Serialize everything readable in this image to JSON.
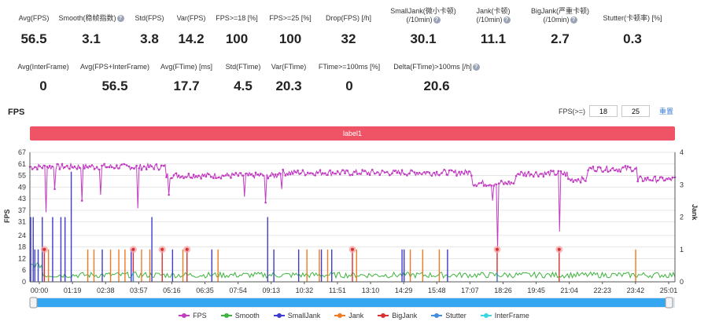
{
  "metrics_row1": [
    {
      "label": "Avg(FPS)",
      "value": "56.5",
      "help": false
    },
    {
      "label": "Smooth(稳帧指数)",
      "value": "3.1",
      "help": true
    },
    {
      "label": "Std(FPS)",
      "value": "3.8",
      "help": false
    },
    {
      "label": "Var(FPS)",
      "value": "14.2",
      "help": false
    },
    {
      "label": "FPS>=18 [%]",
      "value": "100",
      "help": false
    },
    {
      "label": "FPS>=25 [%]",
      "value": "100",
      "help": false
    },
    {
      "label": "Drop(FPS) [/h]",
      "value": "32",
      "help": false
    },
    {
      "label": "SmallJank(微小卡顿)",
      "label2": "(/10min)",
      "value": "30.1",
      "help": true
    },
    {
      "label": "Jank(卡顿)",
      "label2": "(/10min)",
      "value": "11.1",
      "help": true
    },
    {
      "label": "BigJank(严重卡顿)",
      "label2": "(/10min)",
      "value": "2.7",
      "help": true
    },
    {
      "label": "Stutter(卡顿率) [%]",
      "value": "0.3",
      "help": false
    }
  ],
  "metrics_row2": [
    {
      "label": "Avg(InterFrame)",
      "value": "0",
      "help": false
    },
    {
      "label": "Avg(FPS+InterFrame)",
      "value": "56.5",
      "help": false
    },
    {
      "label": "Avg(FTime) [ms]",
      "value": "17.7",
      "help": false
    },
    {
      "label": "Std(FTime)",
      "value": "4.5",
      "help": false
    },
    {
      "label": "Var(FTime)",
      "value": "20.3",
      "help": false
    },
    {
      "label": "FTime>=100ms [%]",
      "value": "0",
      "help": false
    },
    {
      "label": "Delta(FTime)>100ms [/h]",
      "value": "20.6",
      "help": true
    }
  ],
  "chart_section": {
    "title": "FPS",
    "threshold_label": "FPS(>=)",
    "threshold_1": "18",
    "threshold_2": "25",
    "reset_label": "重置",
    "label_bar": "label1"
  },
  "chart_data": {
    "type": "line",
    "y_left_ticks": [
      "0",
      "6",
      "12",
      "18",
      "24",
      "31",
      "37",
      "43",
      "49",
      "55",
      "61",
      "67"
    ],
    "y_left_label": "FPS",
    "y_left_range": [
      0,
      67
    ],
    "y_right_ticks": [
      "0",
      "1",
      "2",
      "3",
      "4"
    ],
    "y_right_label": "Jank",
    "y_right_range": [
      0,
      4
    ],
    "x_ticks": [
      "00:00",
      "01:19",
      "02:38",
      "03:57",
      "05:16",
      "06:35",
      "07:54",
      "09:13",
      "10:32",
      "11:51",
      "13:10",
      "14:29",
      "15:48",
      "17:07",
      "18:26",
      "19:45",
      "21:04",
      "22:23",
      "23:42",
      "25:01"
    ],
    "x_range_sec": [
      0,
      1560
    ],
    "series": [
      {
        "name": "FPS",
        "color": "#c23cc2",
        "axis": "left",
        "segments": [
          {
            "t": [
              0,
              330
            ],
            "level": 59.5
          },
          {
            "t": [
              330,
              600
            ],
            "level": 55
          },
          {
            "t": [
              600,
              1070
            ],
            "level": 56.5
          },
          {
            "t": [
              1070,
              1175
            ],
            "level": 51
          },
          {
            "t": [
              1175,
              1300
            ],
            "level": 56
          },
          {
            "t": [
              1300,
              1350
            ],
            "level": 53
          },
          {
            "t": [
              1350,
              1470
            ],
            "level": 58.5
          },
          {
            "t": [
              1470,
              1560
            ],
            "level": 53
          }
        ],
        "dips": [
          [
            40,
            36
          ],
          [
            60,
            48
          ],
          [
            125,
            42
          ],
          [
            170,
            45
          ],
          [
            260,
            38
          ],
          [
            335,
            45
          ],
          [
            520,
            44
          ],
          [
            570,
            41
          ],
          [
            610,
            48
          ],
          [
            1120,
            42
          ],
          [
            1130,
            17
          ],
          [
            1280,
            26
          ],
          [
            1470,
            52
          ]
        ]
      },
      {
        "name": "Smooth",
        "color": "#3eb33e",
        "axis": "right",
        "base": 0.12
      },
      {
        "name": "SmallJank",
        "color": "#3c3ccf",
        "axis": "right",
        "spikes": [
          [
            2,
            2
          ],
          [
            8,
            2
          ],
          [
            12,
            1
          ],
          [
            20,
            1
          ],
          [
            30,
            2
          ],
          [
            55,
            2
          ],
          [
            75,
            2
          ],
          [
            85,
            2
          ],
          [
            100,
            3.4
          ],
          [
            175,
            1
          ],
          [
            245,
            1
          ],
          [
            295,
            2
          ],
          [
            345,
            1
          ],
          [
            440,
            1
          ],
          [
            575,
            2
          ],
          [
            590,
            1
          ],
          [
            650,
            1
          ],
          [
            705,
            1
          ],
          [
            730,
            1
          ],
          [
            900,
            1
          ],
          [
            905,
            1
          ],
          [
            1010,
            1
          ]
        ]
      },
      {
        "name": "Jank",
        "color": "#f07a20",
        "axis": "right",
        "spikes": [
          [
            45,
            1
          ],
          [
            140,
            1
          ],
          [
            155,
            1
          ],
          [
            195,
            1
          ],
          [
            215,
            1
          ],
          [
            230,
            1
          ],
          [
            270,
            1
          ],
          [
            290,
            1
          ],
          [
            370,
            1
          ],
          [
            455,
            1
          ],
          [
            670,
            1
          ],
          [
            700,
            1
          ],
          [
            720,
            1
          ],
          [
            790,
            1
          ],
          [
            920,
            1
          ],
          [
            950,
            1
          ],
          [
            990,
            1
          ],
          [
            1465,
            1
          ]
        ]
      },
      {
        "name": "BigJank",
        "color": "#d83030",
        "axis": "right",
        "spikes": [
          [
            35,
            1
          ],
          [
            250,
            1
          ],
          [
            320,
            1
          ],
          [
            380,
            1
          ],
          [
            780,
            1
          ],
          [
            1130,
            1
          ],
          [
            1280,
            1
          ]
        ]
      },
      {
        "name": "Stutter",
        "color": "#3f8ee0",
        "axis": "right",
        "spikes": [
          [
            250,
            0.3
          ],
          [
            1130,
            0.3
          ]
        ]
      },
      {
        "name": "InterFrame",
        "color": "#3cd6e3",
        "axis": "right",
        "spikes": []
      }
    ],
    "markers": [
      35,
      250,
      320,
      380,
      780,
      1130,
      1280
    ],
    "legend": [
      "FPS",
      "Smooth",
      "SmallJank",
      "Jank",
      "BigJank",
      "Stutter",
      "InterFrame"
    ]
  }
}
